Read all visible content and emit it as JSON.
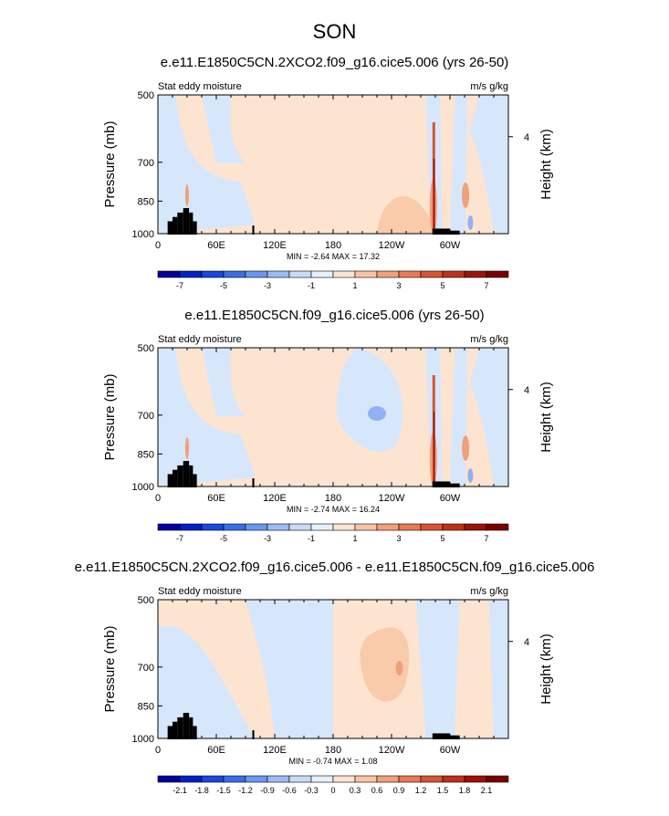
{
  "figure": {
    "title": "SON"
  },
  "chart_data": [
    {
      "type": "heatmap",
      "title": "e.e11.E1850C5CN.2XCO2.f09_g16.cice5.006 (yrs 26-50)",
      "left_string": "Stat eddy moisture",
      "right_string": "m/s g/kg",
      "ylabel": "Pressure (mb)",
      "y2label": "Height (km)",
      "y_ticks": [
        "500",
        "700",
        "850",
        "1000"
      ],
      "y2_ticks": [
        "4"
      ],
      "x_ticks": [
        "0",
        "60E",
        "120E",
        "180",
        "120W",
        "60W"
      ],
      "min_max_text": "MIN = -2.64   MAX = 17.32",
      "min": -2.64,
      "max": 17.32,
      "colorbar_labels": [
        "-7",
        "-5",
        "-3",
        "-1",
        "1",
        "3",
        "5",
        "7"
      ],
      "colorbar_colors": [
        "#0000a0",
        "#0020c8",
        "#1848e0",
        "#3a6ee8",
        "#6a98f0",
        "#9cbcf6",
        "#c8dcfa",
        "#e6f0fe",
        "#fde4d0",
        "#f8c4a4",
        "#f2a07a",
        "#e87a55",
        "#d85532",
        "#c0301a",
        "#9e1208",
        "#7a0000"
      ]
    },
    {
      "type": "heatmap",
      "title": "e.e11.E1850C5CN.f09_g16.cice5.006 (yrs 26-50)",
      "left_string": "Stat eddy moisture",
      "right_string": "m/s g/kg",
      "ylabel": "Pressure (mb)",
      "y2label": "Height (km)",
      "y_ticks": [
        "500",
        "700",
        "850",
        "1000"
      ],
      "y2_ticks": [
        "4"
      ],
      "x_ticks": [
        "0",
        "60E",
        "120E",
        "180",
        "120W",
        "60W"
      ],
      "min_max_text": "MIN = -2.74   MAX = 16.24",
      "min": -2.74,
      "max": 16.24,
      "colorbar_labels": [
        "-7",
        "-5",
        "-3",
        "-1",
        "1",
        "3",
        "5",
        "7"
      ],
      "colorbar_colors": [
        "#0000a0",
        "#0020c8",
        "#1848e0",
        "#3a6ee8",
        "#6a98f0",
        "#9cbcf6",
        "#c8dcfa",
        "#e6f0fe",
        "#fde4d0",
        "#f8c4a4",
        "#f2a07a",
        "#e87a55",
        "#d85532",
        "#c0301a",
        "#9e1208",
        "#7a0000"
      ]
    },
    {
      "type": "heatmap",
      "title": "e.e11.E1850C5CN.2XCO2.f09_g16.cice5.006 - e.e11.E1850C5CN.f09_g16.cice5.006",
      "left_string": "Stat eddy moisture",
      "right_string": "m/s g/kg",
      "ylabel": "Pressure (mb)",
      "y2label": "Height (km)",
      "y_ticks": [
        "500",
        "700",
        "850",
        "1000"
      ],
      "y2_ticks": [
        "4"
      ],
      "x_ticks": [
        "0",
        "60E",
        "120E",
        "180",
        "120W",
        "60W"
      ],
      "min_max_text": "MIN = -0.74   MAX = 1.08",
      "min": -0.74,
      "max": 1.08,
      "colorbar_labels": [
        "-2.1",
        "-1.8",
        "-1.5",
        "-1.2",
        "-0.9",
        "-0.6",
        "-0.3",
        "0",
        "0.3",
        "0.6",
        "0.9",
        "1.2",
        "1.5",
        "1.8",
        "2.1"
      ],
      "colorbar_colors": [
        "#0000a0",
        "#0020c8",
        "#1848e0",
        "#3a6ee8",
        "#6a98f0",
        "#9cbcf6",
        "#c8dcfa",
        "#e6f0fe",
        "#fde4d0",
        "#f8c4a4",
        "#f2a07a",
        "#e87a55",
        "#d85532",
        "#c0301a",
        "#9e1208",
        "#7a0000"
      ]
    }
  ]
}
